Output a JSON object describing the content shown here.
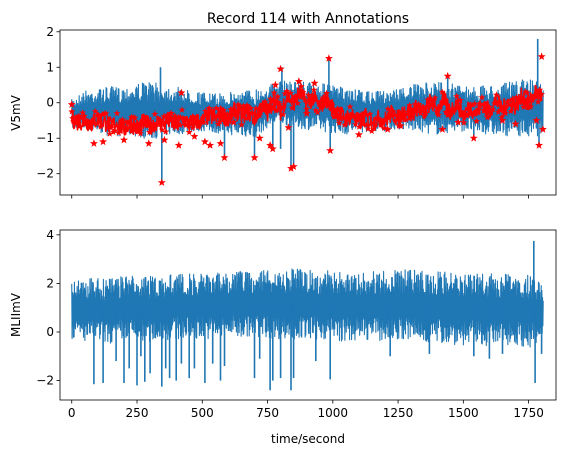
{
  "chart_data": [
    {
      "type": "line",
      "title": "Record 114 with Annotations",
      "xlabel": "",
      "ylabel": "V5mV",
      "xlim": [
        -45,
        1855
      ],
      "ylim": [
        -2.6,
        2.05
      ],
      "xticks": [
        0,
        250,
        500,
        750,
        1000,
        1250,
        1500,
        1750
      ],
      "xtick_labels": [
        "",
        "",
        "",
        "",
        "",
        "",
        "",
        ""
      ],
      "yticks": [
        -2,
        -1,
        0,
        1,
        2
      ],
      "ytick_labels": [
        "−2",
        "−1",
        "0",
        "1",
        "2"
      ],
      "series": [
        {
          "color": "#1f77b4",
          "style": "line",
          "x": [
            0,
            50,
            100,
            150,
            200,
            250,
            300,
            350,
            400,
            450,
            500,
            550,
            600,
            650,
            700,
            750,
            800,
            850,
            900,
            950,
            1000,
            1050,
            1100,
            1150,
            1200,
            1250,
            1300,
            1350,
            1400,
            1450,
            1500,
            1550,
            1600,
            1650,
            1700,
            1750,
            1806
          ],
          "upper": [
            0.1,
            0.35,
            0.4,
            0.45,
            0.45,
            0.55,
            0.6,
            0.5,
            0.45,
            0.35,
            0.3,
            0.25,
            0.3,
            0.35,
            0.4,
            0.5,
            0.6,
            0.65,
            0.6,
            0.55,
            0.5,
            0.4,
            0.35,
            0.3,
            0.35,
            0.4,
            0.5,
            0.55,
            0.6,
            0.55,
            0.5,
            0.45,
            0.5,
            0.55,
            0.6,
            0.7,
            0.6
          ],
          "lower": [
            -0.75,
            -0.8,
            -0.85,
            -0.95,
            -0.95,
            -0.95,
            -1.05,
            -0.95,
            -0.9,
            -0.85,
            -0.8,
            -0.85,
            -0.9,
            -0.95,
            -1.0,
            -0.7,
            -0.6,
            -0.7,
            -0.75,
            -0.8,
            -0.85,
            -0.9,
            -0.85,
            -0.8,
            -0.8,
            -0.75,
            -0.8,
            -0.85,
            -0.9,
            -0.85,
            -0.8,
            -0.85,
            -0.9,
            -0.95,
            -0.9,
            -1.0,
            -0.9
          ],
          "spikes": [
            {
              "x": 345,
              "y": -2.25
            },
            {
              "x": 340,
              "y": 1.0
            },
            {
              "x": 585,
              "y": -1.55
            },
            {
              "x": 700,
              "y": -1.55
            },
            {
              "x": 770,
              "y": -1.3
            },
            {
              "x": 800,
              "y": -1.3
            },
            {
              "x": 805,
              "y": 1.0
            },
            {
              "x": 840,
              "y": -1.85
            },
            {
              "x": 850,
              "y": -1.75
            },
            {
              "x": 985,
              "y": 1.25
            },
            {
              "x": 990,
              "y": -1.35
            },
            {
              "x": 1440,
              "y": 0.8
            },
            {
              "x": 1540,
              "y": -1.0
            },
            {
              "x": 1785,
              "y": 1.8
            },
            {
              "x": 1790,
              "y": -1.25
            }
          ]
        },
        {
          "color": "#ff0000",
          "style": "line+star",
          "x": [
            0,
            25,
            50,
            75,
            100,
            125,
            150,
            175,
            200,
            225,
            250,
            275,
            300,
            325,
            350,
            375,
            400,
            425,
            450,
            475,
            500,
            525,
            550,
            575,
            600,
            625,
            650,
            675,
            700,
            725,
            750,
            775,
            800,
            825,
            850,
            875,
            900,
            925,
            950,
            975,
            1000,
            1025,
            1050,
            1075,
            1100,
            1125,
            1150,
            1175,
            1200,
            1225,
            1250,
            1275,
            1300,
            1325,
            1350,
            1375,
            1400,
            1425,
            1450,
            1475,
            1500,
            1525,
            1550,
            1575,
            1600,
            1625,
            1650,
            1675,
            1700,
            1725,
            1750,
            1775,
            1800
          ],
          "y": [
            -0.45,
            -0.55,
            -0.5,
            -0.6,
            -0.45,
            -0.55,
            -0.65,
            -0.55,
            -0.75,
            -0.6,
            -0.7,
            -0.55,
            -0.65,
            -0.55,
            -0.6,
            -0.5,
            -0.65,
            -0.45,
            -0.6,
            -0.5,
            -0.55,
            -0.35,
            -0.45,
            -0.3,
            -0.5,
            -0.2,
            -0.35,
            -0.25,
            -0.45,
            -0.1,
            -0.3,
            0.1,
            -0.25,
            0.2,
            0.0,
            0.3,
            -0.05,
            0.15,
            -0.1,
            0.1,
            -0.15,
            -0.3,
            -0.45,
            -0.35,
            -0.55,
            -0.4,
            -0.6,
            -0.45,
            -0.5,
            -0.3,
            -0.45,
            -0.2,
            -0.35,
            -0.1,
            -0.3,
            0.05,
            -0.2,
            0.1,
            -0.25,
            0.0,
            -0.35,
            -0.1,
            -0.3,
            0.0,
            -0.25,
            0.1,
            -0.2,
            0.05,
            -0.1,
            0.2,
            -0.05,
            0.3,
            0.2
          ],
          "markers": [
            {
              "x": 0,
              "y": -0.05
            },
            {
              "x": 5,
              "y": -0.45
            },
            {
              "x": 50,
              "y": -0.6
            },
            {
              "x": 85,
              "y": -1.15
            },
            {
              "x": 120,
              "y": -1.1
            },
            {
              "x": 150,
              "y": -0.7
            },
            {
              "x": 200,
              "y": -1.05
            },
            {
              "x": 230,
              "y": -0.75
            },
            {
              "x": 260,
              "y": -0.8
            },
            {
              "x": 295,
              "y": -1.15
            },
            {
              "x": 345,
              "y": -2.25
            },
            {
              "x": 355,
              "y": -1.05
            },
            {
              "x": 410,
              "y": -1.2
            },
            {
              "x": 420,
              "y": 0.28
            },
            {
              "x": 470,
              "y": -0.95
            },
            {
              "x": 510,
              "y": -1.1
            },
            {
              "x": 530,
              "y": -1.2
            },
            {
              "x": 570,
              "y": -1.15
            },
            {
              "x": 585,
              "y": -1.55
            },
            {
              "x": 620,
              "y": -0.55
            },
            {
              "x": 700,
              "y": -1.55
            },
            {
              "x": 720,
              "y": -1.0
            },
            {
              "x": 760,
              "y": -1.2
            },
            {
              "x": 770,
              "y": -1.3
            },
            {
              "x": 780,
              "y": 0.5
            },
            {
              "x": 790,
              "y": 0.0
            },
            {
              "x": 800,
              "y": 0.95
            },
            {
              "x": 830,
              "y": -0.7
            },
            {
              "x": 840,
              "y": -1.85
            },
            {
              "x": 850,
              "y": -1.8
            },
            {
              "x": 870,
              "y": 0.6
            },
            {
              "x": 900,
              "y": -0.3
            },
            {
              "x": 930,
              "y": 0.55
            },
            {
              "x": 985,
              "y": 1.25
            },
            {
              "x": 990,
              "y": -1.35
            },
            {
              "x": 1020,
              "y": -0.2
            },
            {
              "x": 1100,
              "y": -0.9
            },
            {
              "x": 1210,
              "y": -0.75
            },
            {
              "x": 1260,
              "y": -0.65
            },
            {
              "x": 1300,
              "y": -0.2
            },
            {
              "x": 1370,
              "y": -0.1
            },
            {
              "x": 1420,
              "y": -0.75
            },
            {
              "x": 1440,
              "y": 0.75
            },
            {
              "x": 1480,
              "y": -0.55
            },
            {
              "x": 1540,
              "y": -1.0
            },
            {
              "x": 1590,
              "y": -0.3
            },
            {
              "x": 1650,
              "y": -0.5
            },
            {
              "x": 1700,
              "y": -0.6
            },
            {
              "x": 1750,
              "y": 0.1
            },
            {
              "x": 1780,
              "y": -0.5
            },
            {
              "x": 1790,
              "y": -1.2
            },
            {
              "x": 1800,
              "y": 1.3
            },
            {
              "x": 1805,
              "y": -0.75
            }
          ]
        }
      ]
    },
    {
      "type": "line",
      "title": "",
      "xlabel": "time/second",
      "ylabel": "MLIImV",
      "xlim": [
        -45,
        1855
      ],
      "ylim": [
        -2.8,
        4.2
      ],
      "xticks": [
        0,
        250,
        500,
        750,
        1000,
        1250,
        1500,
        1750
      ],
      "xtick_labels": [
        "0",
        "250",
        "500",
        "750",
        "1000",
        "1250",
        "1500",
        "1750"
      ],
      "yticks": [
        -2,
        0,
        2,
        4
      ],
      "ytick_labels": [
        "−2",
        "0",
        "2",
        "4"
      ],
      "series": [
        {
          "color": "#1f77b4",
          "style": "line",
          "x": [
            0,
            50,
            100,
            150,
            200,
            250,
            300,
            350,
            400,
            450,
            500,
            550,
            600,
            650,
            700,
            750,
            800,
            850,
            900,
            950,
            1000,
            1050,
            1100,
            1150,
            1200,
            1250,
            1300,
            1350,
            1400,
            1450,
            1500,
            1550,
            1600,
            1650,
            1700,
            1750,
            1806
          ],
          "upper": [
            2.1,
            2.2,
            2.2,
            2.2,
            2.3,
            2.3,
            2.3,
            2.35,
            2.4,
            2.4,
            2.4,
            2.45,
            2.45,
            2.5,
            2.5,
            2.55,
            2.6,
            2.6,
            2.55,
            2.55,
            2.5,
            2.5,
            2.45,
            2.5,
            2.55,
            2.55,
            2.6,
            2.55,
            2.5,
            2.5,
            2.45,
            2.4,
            2.4,
            2.4,
            2.35,
            2.4,
            2.3
          ],
          "lower": [
            -0.3,
            -0.4,
            -0.4,
            -0.5,
            -0.3,
            -0.45,
            -0.4,
            -0.35,
            -0.3,
            -0.3,
            -0.25,
            -0.3,
            -0.2,
            -0.25,
            -0.2,
            -0.25,
            -0.3,
            -0.35,
            -0.3,
            -0.3,
            -0.35,
            -0.4,
            -0.35,
            -0.3,
            -0.4,
            -0.35,
            -0.4,
            -0.5,
            -0.45,
            -0.5,
            -0.55,
            -0.5,
            -0.6,
            -0.55,
            -0.5,
            -0.65,
            -0.6
          ],
          "spikes": [
            {
              "x": 85,
              "y": -2.15
            },
            {
              "x": 120,
              "y": -2.1
            },
            {
              "x": 170,
              "y": -1.2
            },
            {
              "x": 200,
              "y": -2.1
            },
            {
              "x": 220,
              "y": -1.5
            },
            {
              "x": 250,
              "y": -2.2
            },
            {
              "x": 265,
              "y": -1.0
            },
            {
              "x": 280,
              "y": -2.05
            },
            {
              "x": 300,
              "y": -1.7
            },
            {
              "x": 345,
              "y": -2.25
            },
            {
              "x": 360,
              "y": -1.5
            },
            {
              "x": 375,
              "y": -1.9
            },
            {
              "x": 400,
              "y": -2.0
            },
            {
              "x": 420,
              "y": -1.3
            },
            {
              "x": 450,
              "y": -1.9
            },
            {
              "x": 470,
              "y": -1.5
            },
            {
              "x": 510,
              "y": -2.1
            },
            {
              "x": 540,
              "y": -1.3
            },
            {
              "x": 570,
              "y": -2.0
            },
            {
              "x": 585,
              "y": -1.4
            },
            {
              "x": 700,
              "y": -1.9
            },
            {
              "x": 720,
              "y": -1.1
            },
            {
              "x": 760,
              "y": -2.4
            },
            {
              "x": 770,
              "y": -2.0
            },
            {
              "x": 800,
              "y": -1.9
            },
            {
              "x": 840,
              "y": -2.4
            },
            {
              "x": 850,
              "y": -1.9
            },
            {
              "x": 935,
              "y": -1.2
            },
            {
              "x": 990,
              "y": -1.95
            },
            {
              "x": 1220,
              "y": -1.0
            },
            {
              "x": 1370,
              "y": -0.9
            },
            {
              "x": 1540,
              "y": -1.0
            },
            {
              "x": 1600,
              "y": -1.1
            },
            {
              "x": 1650,
              "y": -0.9
            },
            {
              "x": 1770,
              "y": 3.75
            },
            {
              "x": 1775,
              "y": -2.1
            },
            {
              "x": 1800,
              "y": -0.9
            }
          ]
        }
      ]
    }
  ]
}
